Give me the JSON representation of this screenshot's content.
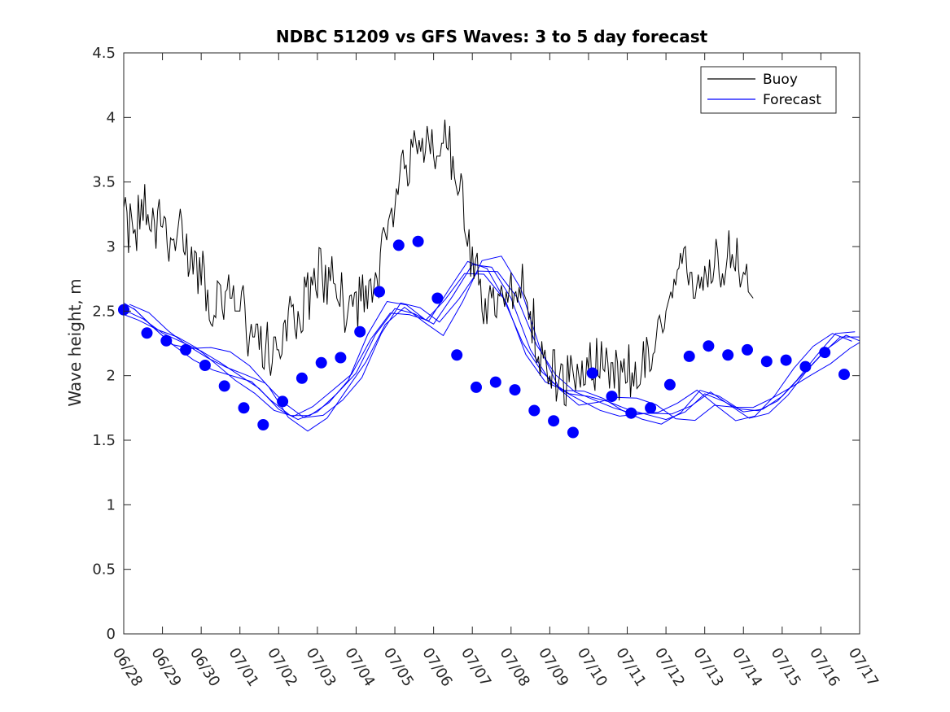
{
  "chart_data": {
    "type": "line",
    "title": "NDBC 51209 vs GFS Waves: 3 to 5 day forecast",
    "xlabel": "",
    "ylabel": "Wave height, m",
    "x_ticks": [
      "06/28",
      "06/29",
      "06/30",
      "07/01",
      "07/02",
      "07/03",
      "07/04",
      "07/05",
      "07/06",
      "07/07",
      "07/08",
      "07/09",
      "07/10",
      "07/11",
      "07/12",
      "07/13",
      "07/14",
      "07/15",
      "07/16",
      "07/17"
    ],
    "y_ticks": [
      "0",
      "0.5",
      "1",
      "1.5",
      "2",
      "2.5",
      "3",
      "3.5",
      "4",
      "4.5"
    ],
    "xlim": [
      "06/28",
      "07/17"
    ],
    "ylim": [
      0,
      4.5
    ],
    "grid": false,
    "legend_position": "top-right",
    "colors": {
      "buoy": "#000000",
      "forecast": "#0000ff"
    },
    "series": [
      {
        "name": "Buoy",
        "x_unit": "day",
        "x": [
          0,
          0.25,
          0.5,
          0.75,
          1,
          1.25,
          1.5,
          1.75,
          2,
          2.25,
          2.5,
          2.75,
          3,
          3.25,
          3.5,
          3.75,
          4,
          4.25,
          4.5,
          4.75,
          5,
          5.25,
          5.5,
          5.75,
          6,
          6.25,
          6.5,
          6.75,
          7,
          7.25,
          7.5,
          7.75,
          8,
          8.25,
          8.5,
          8.75,
          9,
          9.25,
          9.5,
          9.75,
          10,
          10.25,
          10.5,
          10.75,
          11,
          11.25,
          11.5,
          11.75,
          12,
          12.25,
          12.5,
          12.75,
          13,
          13.25,
          13.5,
          13.75,
          14,
          14.25,
          14.5,
          14.75,
          15,
          15.25,
          15.5,
          15.75,
          16,
          16.25
        ],
        "values": [
          3.2,
          3.1,
          3.3,
          3.2,
          3.15,
          3.05,
          3.1,
          2.9,
          2.8,
          2.6,
          2.5,
          2.6,
          2.6,
          2.3,
          2.3,
          2.2,
          2.2,
          2.4,
          2.5,
          2.6,
          2.8,
          2.75,
          2.7,
          2.5,
          2.55,
          2.6,
          2.7,
          3.0,
          3.3,
          3.6,
          3.8,
          3.85,
          3.8,
          3.8,
          3.7,
          3.3,
          2.9,
          2.6,
          2.6,
          2.5,
          2.6,
          2.7,
          2.5,
          2.2,
          2.0,
          2.0,
          1.95,
          2.0,
          2.05,
          2.1,
          2.0,
          2.0,
          2.05,
          2.0,
          2.1,
          2.2,
          2.4,
          2.7,
          2.8,
          2.8,
          2.75,
          2.85,
          2.9,
          2.95,
          2.7,
          2.6
        ]
      },
      {
        "name": "Forecast",
        "x_unit": "day",
        "x": [
          0,
          0.5,
          1,
          1.5,
          2,
          2.5,
          3,
          3.5,
          4,
          4.5,
          5,
          5.5,
          6,
          6.5,
          7,
          7.5,
          8,
          8.5,
          9,
          9.5,
          10,
          10.5,
          11,
          11.5,
          12,
          12.5,
          13,
          13.5,
          14,
          14.5,
          15,
          15.5,
          16,
          16.5,
          17,
          17.5,
          18,
          18.5,
          19
        ],
        "values": [
          2.51,
          2.44,
          2.33,
          2.26,
          2.19,
          2.1,
          2.0,
          1.9,
          1.74,
          1.66,
          1.72,
          1.86,
          2.02,
          2.32,
          2.52,
          2.48,
          2.4,
          2.62,
          2.86,
          2.84,
          2.6,
          2.2,
          1.96,
          1.86,
          1.84,
          1.8,
          1.74,
          1.7,
          1.66,
          1.72,
          1.86,
          1.8,
          1.72,
          1.74,
          1.84,
          2.0,
          2.16,
          2.3,
          2.3
        ]
      }
    ],
    "forecast_markers": {
      "x": [
        0,
        0.6,
        1.1,
        1.6,
        2.1,
        2.6,
        3.1,
        3.6,
        4.1,
        4.6,
        5.1,
        5.6,
        6.1,
        6.6,
        7.1,
        7.6,
        8.1,
        8.6,
        9.1,
        9.6,
        10.1,
        10.6,
        11.1,
        11.6,
        12.1,
        12.6,
        13.1,
        13.6,
        14.1,
        14.6,
        15.1,
        15.6,
        16.1,
        16.6,
        17.1,
        17.6,
        18.1,
        18.6
      ],
      "values": [
        2.51,
        2.33,
        2.27,
        2.2,
        2.08,
        1.92,
        1.75,
        1.62,
        1.8,
        1.98,
        2.1,
        2.14,
        2.34,
        2.65,
        3.01,
        3.04,
        2.6,
        2.16,
        1.91,
        1.95,
        1.89,
        1.73,
        1.65,
        1.56,
        2.02,
        1.84,
        1.71,
        1.75,
        1.93,
        2.15,
        2.23,
        2.16,
        2.2,
        2.11,
        2.12,
        2.07,
        2.18,
        2.01
      ]
    },
    "legend": {
      "buoy_label": "Buoy",
      "forecast_label": "Forecast"
    }
  }
}
